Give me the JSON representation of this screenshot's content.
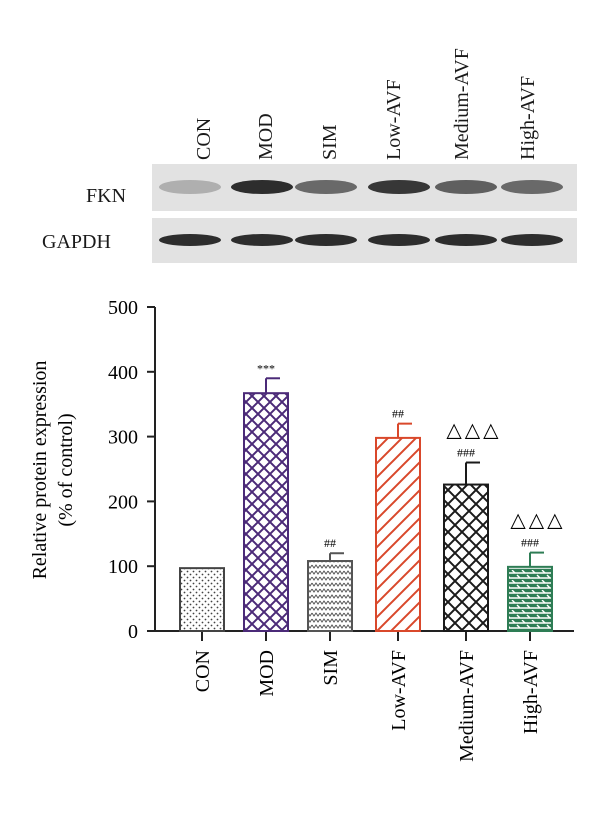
{
  "blot": {
    "lanes": [
      "CON",
      "MOD",
      "SIM",
      "Low-AVF",
      "Medium-AVF",
      "High-AVF"
    ],
    "rows": [
      {
        "label": "FKN",
        "intensity": [
          0.25,
          0.9,
          0.6,
          0.85,
          0.65,
          0.6
        ]
      },
      {
        "label": "GAPDH",
        "intensity": [
          0.9,
          0.9,
          0.9,
          0.9,
          0.9,
          0.9
        ]
      }
    ]
  },
  "chart_data": {
    "type": "bar",
    "categories": [
      "CON",
      "MOD",
      "SIM",
      "Low-AVF",
      "Medium-AVF",
      "High-AVF"
    ],
    "values": [
      97,
      367,
      108,
      298,
      226,
      99
    ],
    "errors": [
      0,
      23,
      12,
      22,
      34,
      22
    ],
    "ylabel_line1": "Relative protein expression",
    "ylabel_line2": "(% of control)",
    "ylim": [
      0,
      500
    ],
    "yticks": [
      "0",
      "100",
      "200",
      "300",
      "400",
      "500"
    ],
    "annotations": [
      {
        "category": "MOD",
        "text": "***"
      },
      {
        "category": "SIM",
        "text": "##"
      },
      {
        "category": "Low-AVF",
        "text": "##"
      },
      {
        "category": "Medium-AVF",
        "text": "###",
        "extra": "△△△"
      },
      {
        "category": "High-AVF",
        "text": "###",
        "extra": "△△△"
      }
    ],
    "colors": [
      "#444444",
      "#4b2a78",
      "#555555",
      "#d9482b",
      "#1a1a1a",
      "#2e7d55"
    ],
    "patterns": [
      "dots",
      "crosshatch",
      "wave",
      "diagonal",
      "crosshatch",
      "brick"
    ]
  }
}
